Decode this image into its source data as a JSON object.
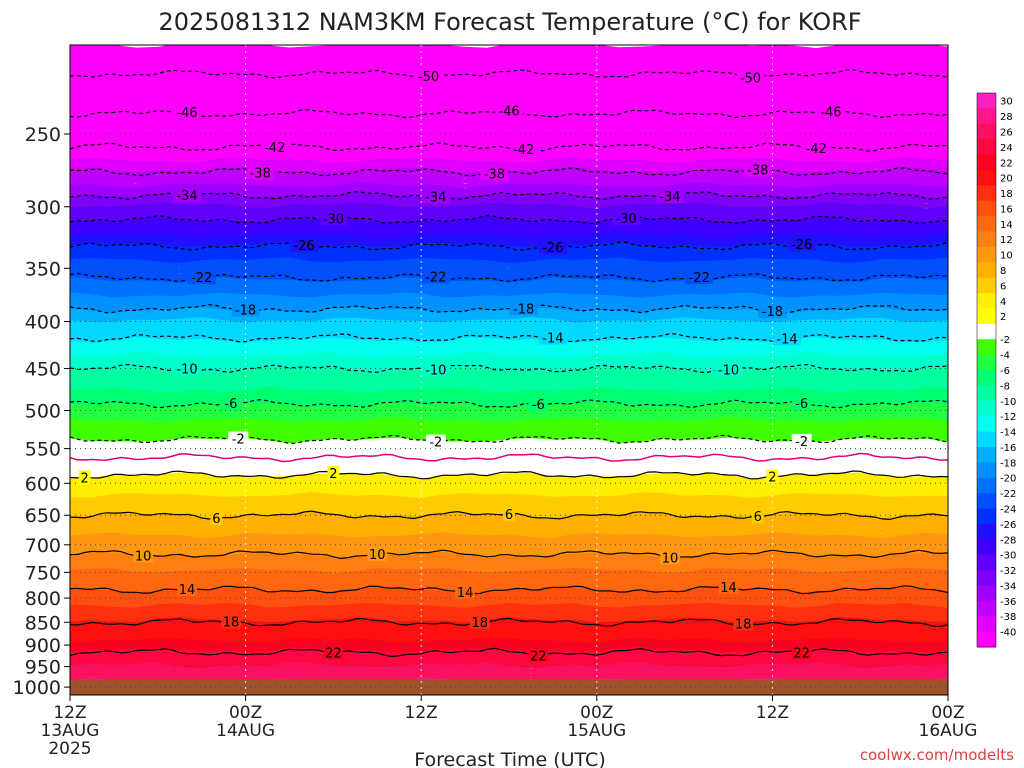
{
  "chart_data": {
    "type": "heatmap",
    "title": "2025081312 NAM3KM Forecast Temperature (°C) for KORF",
    "xlabel": "Forecast Time (UTC)",
    "ylabel": "",
    "x_ticks": [
      {
        "label": "12Z",
        "sub1": "13AUG",
        "sub2": "2025",
        "hours": 0
      },
      {
        "label": "00Z",
        "sub1": "14AUG",
        "sub2": "",
        "hours": 12
      },
      {
        "label": "12Z",
        "sub1": "",
        "sub2": "",
        "hours": 24
      },
      {
        "label": "00Z",
        "sub1": "15AUG",
        "sub2": "",
        "hours": 36
      },
      {
        "label": "12Z",
        "sub1": "",
        "sub2": "",
        "hours": 48
      },
      {
        "label": "00Z",
        "sub1": "16AUG",
        "sub2": "",
        "hours": 60
      }
    ],
    "xlim_hours": [
      0,
      60
    ],
    "y_ticks": [
      250,
      300,
      350,
      400,
      450,
      500,
      550,
      600,
      650,
      700,
      750,
      800,
      850,
      900,
      950,
      1000
    ],
    "ylim_hPa": [
      200,
      1020
    ],
    "y_scale": "log",
    "grid": true,
    "colorbar": {
      "labels": [
        "30",
        "28",
        "26",
        "24",
        "22",
        "20",
        "18",
        "16",
        "14",
        "12",
        "10",
        "8",
        "6",
        "4",
        "2",
        "-2",
        "-4",
        "-6",
        "-8",
        "-10",
        "-12",
        "-14",
        "-16",
        "-18",
        "-20",
        "-22",
        "-24",
        "-26",
        "-28",
        "-30",
        "-32",
        "-34",
        "-36",
        "-38",
        "-40"
      ],
      "colors": [
        "#ff20c0",
        "#ff1888",
        "#ff1060",
        "#ff0840",
        "#ff0020",
        "#ff1010",
        "#ff3010",
        "#ff5010",
        "#ff6810",
        "#ff8010",
        "#ff9810",
        "#ffb000",
        "#ffcc00",
        "#ffee00",
        "#ffff00",
        "#ffffff",
        "#40ff00",
        "#20ff40",
        "#00ff70",
        "#00ffa0",
        "#00ffcc",
        "#00ffee",
        "#00d8ff",
        "#00b0ff",
        "#0090ff",
        "#0070ff",
        "#0050ff",
        "#0030ff",
        "#2010ff",
        "#4000ff",
        "#6000ff",
        "#8000ff",
        "#a000ff",
        "#c000ff",
        "#e000ff",
        "#ff00ff"
      ]
    },
    "temperature_profile": [
      {
        "p": 200,
        "t": -53
      },
      {
        "p": 225,
        "t": -48
      },
      {
        "p": 250,
        "t": -44
      },
      {
        "p": 275,
        "t": -38
      },
      {
        "p": 300,
        "t": -32
      },
      {
        "p": 325,
        "t": -27
      },
      {
        "p": 350,
        "t": -23
      },
      {
        "p": 375,
        "t": -20
      },
      {
        "p": 400,
        "t": -16
      },
      {
        "p": 425,
        "t": -13
      },
      {
        "p": 450,
        "t": -10
      },
      {
        "p": 475,
        "t": -8
      },
      {
        "p": 500,
        "t": -5
      },
      {
        "p": 525,
        "t": -3
      },
      {
        "p": 550,
        "t": -1
      },
      {
        "p": 575,
        "t": 1
      },
      {
        "p": 600,
        "t": 3
      },
      {
        "p": 650,
        "t": 6
      },
      {
        "p": 700,
        "t": 9
      },
      {
        "p": 750,
        "t": 12
      },
      {
        "p": 800,
        "t": 15
      },
      {
        "p": 850,
        "t": 18
      },
      {
        "p": 900,
        "t": 21
      },
      {
        "p": 950,
        "t": 24
      },
      {
        "p": 1000,
        "t": 27
      },
      {
        "p": 1020,
        "t": 28
      }
    ],
    "contours": [
      {
        "t": -50,
        "style": "dashed",
        "labels": [
          {
            "hours": 24.5,
            "label": "-50"
          },
          {
            "hours": 46.5,
            "label": "-50"
          }
        ]
      },
      {
        "t": -46,
        "style": "dashed",
        "labels": [
          {
            "hours": 8,
            "label": "-46"
          },
          {
            "hours": 30,
            "label": "-46"
          },
          {
            "hours": 52,
            "label": "-46"
          }
        ]
      },
      {
        "t": -42,
        "style": "dashed",
        "labels": [
          {
            "hours": 14,
            "label": "-42"
          },
          {
            "hours": 31,
            "label": "-42"
          },
          {
            "hours": 51,
            "label": "-42"
          }
        ]
      },
      {
        "t": -38,
        "style": "dashed",
        "labels": [
          {
            "hours": 13,
            "label": "-38"
          },
          {
            "hours": 29,
            "label": "-38"
          },
          {
            "hours": 47,
            "label": "-38"
          }
        ]
      },
      {
        "t": -34,
        "style": "dashed",
        "labels": [
          {
            "hours": 8,
            "label": "-34"
          },
          {
            "hours": 25,
            "label": "-34"
          },
          {
            "hours": 41,
            "label": "-34"
          }
        ]
      },
      {
        "t": -30,
        "style": "dashed",
        "labels": [
          {
            "hours": 18,
            "label": "-30"
          },
          {
            "hours": 38,
            "label": "-30"
          }
        ]
      },
      {
        "t": -26,
        "style": "dashed",
        "labels": [
          {
            "hours": 16,
            "label": "-26"
          },
          {
            "hours": 33,
            "label": "-26"
          },
          {
            "hours": 50,
            "label": "-26"
          }
        ]
      },
      {
        "t": -22,
        "style": "dashed",
        "labels": [
          {
            "hours": 9,
            "label": "-22"
          },
          {
            "hours": 25,
            "label": "-22"
          },
          {
            "hours": 43,
            "label": "-22"
          }
        ]
      },
      {
        "t": -18,
        "style": "dashed",
        "labels": [
          {
            "hours": 12,
            "label": "-18"
          },
          {
            "hours": 31,
            "label": "-18"
          },
          {
            "hours": 48,
            "label": "-18"
          }
        ]
      },
      {
        "t": -14,
        "style": "dashed",
        "labels": [
          {
            "hours": 33,
            "label": "-14"
          },
          {
            "hours": 49,
            "label": "-14"
          }
        ]
      },
      {
        "t": -10,
        "style": "dashed",
        "labels": [
          {
            "hours": 8,
            "label": "-10"
          },
          {
            "hours": 25,
            "label": "-10"
          },
          {
            "hours": 45,
            "label": "-10"
          }
        ]
      },
      {
        "t": -6,
        "style": "dashed",
        "labels": [
          {
            "hours": 11,
            "label": "-6"
          },
          {
            "hours": 32,
            "label": "-6"
          },
          {
            "hours": 50,
            "label": "-6"
          }
        ]
      },
      {
        "t": -2,
        "style": "dashed",
        "labels": [
          {
            "hours": 11.5,
            "label": "-2"
          },
          {
            "hours": 25,
            "label": "-2"
          },
          {
            "hours": 50,
            "label": "-2"
          }
        ]
      },
      {
        "t": 0,
        "style": "magenta",
        "labels": []
      },
      {
        "t": 2,
        "style": "solid",
        "labels": [
          {
            "hours": 1,
            "label": "2"
          },
          {
            "hours": 18,
            "label": "2"
          },
          {
            "hours": 48,
            "label": "2"
          }
        ]
      },
      {
        "t": 6,
        "style": "solid",
        "labels": [
          {
            "hours": 10,
            "label": "6"
          },
          {
            "hours": 30,
            "label": "6"
          },
          {
            "hours": 47,
            "label": "6"
          }
        ]
      },
      {
        "t": 10,
        "style": "solid",
        "labels": [
          {
            "hours": 5,
            "label": "10"
          },
          {
            "hours": 21,
            "label": "10"
          },
          {
            "hours": 41,
            "label": "10"
          }
        ]
      },
      {
        "t": 14,
        "style": "solid",
        "labels": [
          {
            "hours": 8,
            "label": "14"
          },
          {
            "hours": 27,
            "label": "14"
          },
          {
            "hours": 45,
            "label": "14"
          }
        ]
      },
      {
        "t": 18,
        "style": "solid",
        "labels": [
          {
            "hours": 11,
            "label": "18"
          },
          {
            "hours": 28,
            "label": "18"
          },
          {
            "hours": 46,
            "label": "18"
          }
        ]
      },
      {
        "t": 22,
        "style": "solid",
        "labels": [
          {
            "hours": 18,
            "label": "22"
          },
          {
            "hours": 32,
            "label": "22"
          },
          {
            "hours": 50,
            "label": "22"
          }
        ]
      }
    ],
    "credit": "coolwx.com/modelts"
  }
}
